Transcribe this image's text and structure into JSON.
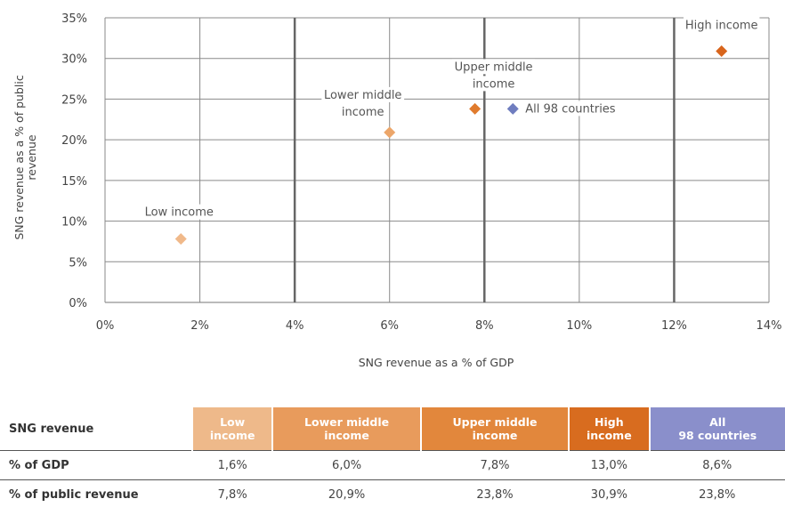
{
  "chart_data": {
    "type": "scatter",
    "xlabel": "SNG revenue as a % of GDP",
    "ylabel": "SNG revenue  as a % of public revenue",
    "xlim": [
      0,
      14
    ],
    "ylim": [
      0,
      35
    ],
    "xticks": [
      "0%",
      "2%",
      "4%",
      "6%",
      "8%",
      "10%",
      "12%",
      "14%"
    ],
    "yticks": [
      "0%",
      "5%",
      "10%",
      "15%",
      "20%",
      "25%",
      "30%",
      "35%"
    ],
    "grid": true,
    "points": [
      {
        "label": "Low income",
        "x": 1.6,
        "y": 7.8,
        "color": "#f0b98a"
      },
      {
        "label": "Lower middle income",
        "x": 6.0,
        "y": 20.9,
        "color": "#eca66a"
      },
      {
        "label": "Upper middle income",
        "x": 7.8,
        "y": 23.8,
        "color": "#e07b2d"
      },
      {
        "label": "All 98 countries",
        "x": 8.6,
        "y": 23.8,
        "color": "#6f7dbf"
      },
      {
        "label": "High income",
        "x": 13.0,
        "y": 30.9,
        "color": "#d8651c"
      }
    ]
  },
  "table": {
    "header_label": "SNG revenue",
    "columns": [
      "Low income",
      "Lower middle income",
      "Upper middle income",
      "High income",
      "All 98 countries"
    ],
    "column_lines": [
      [
        "Low",
        "income"
      ],
      [
        "Lower middle",
        "income"
      ],
      [
        "Upper middle",
        "income"
      ],
      [
        "High",
        "income"
      ],
      [
        "All",
        "98 countries"
      ]
    ],
    "rows": [
      {
        "label": "% of GDP",
        "values": [
          "1,6%",
          "6,0%",
          "7,8%",
          "13,0%",
          "8,6%"
        ]
      },
      {
        "label": "% of public revenue",
        "values": [
          "7,8%",
          "20,9%",
          "23,8%",
          "30,9%",
          "23,8%"
        ]
      }
    ]
  }
}
